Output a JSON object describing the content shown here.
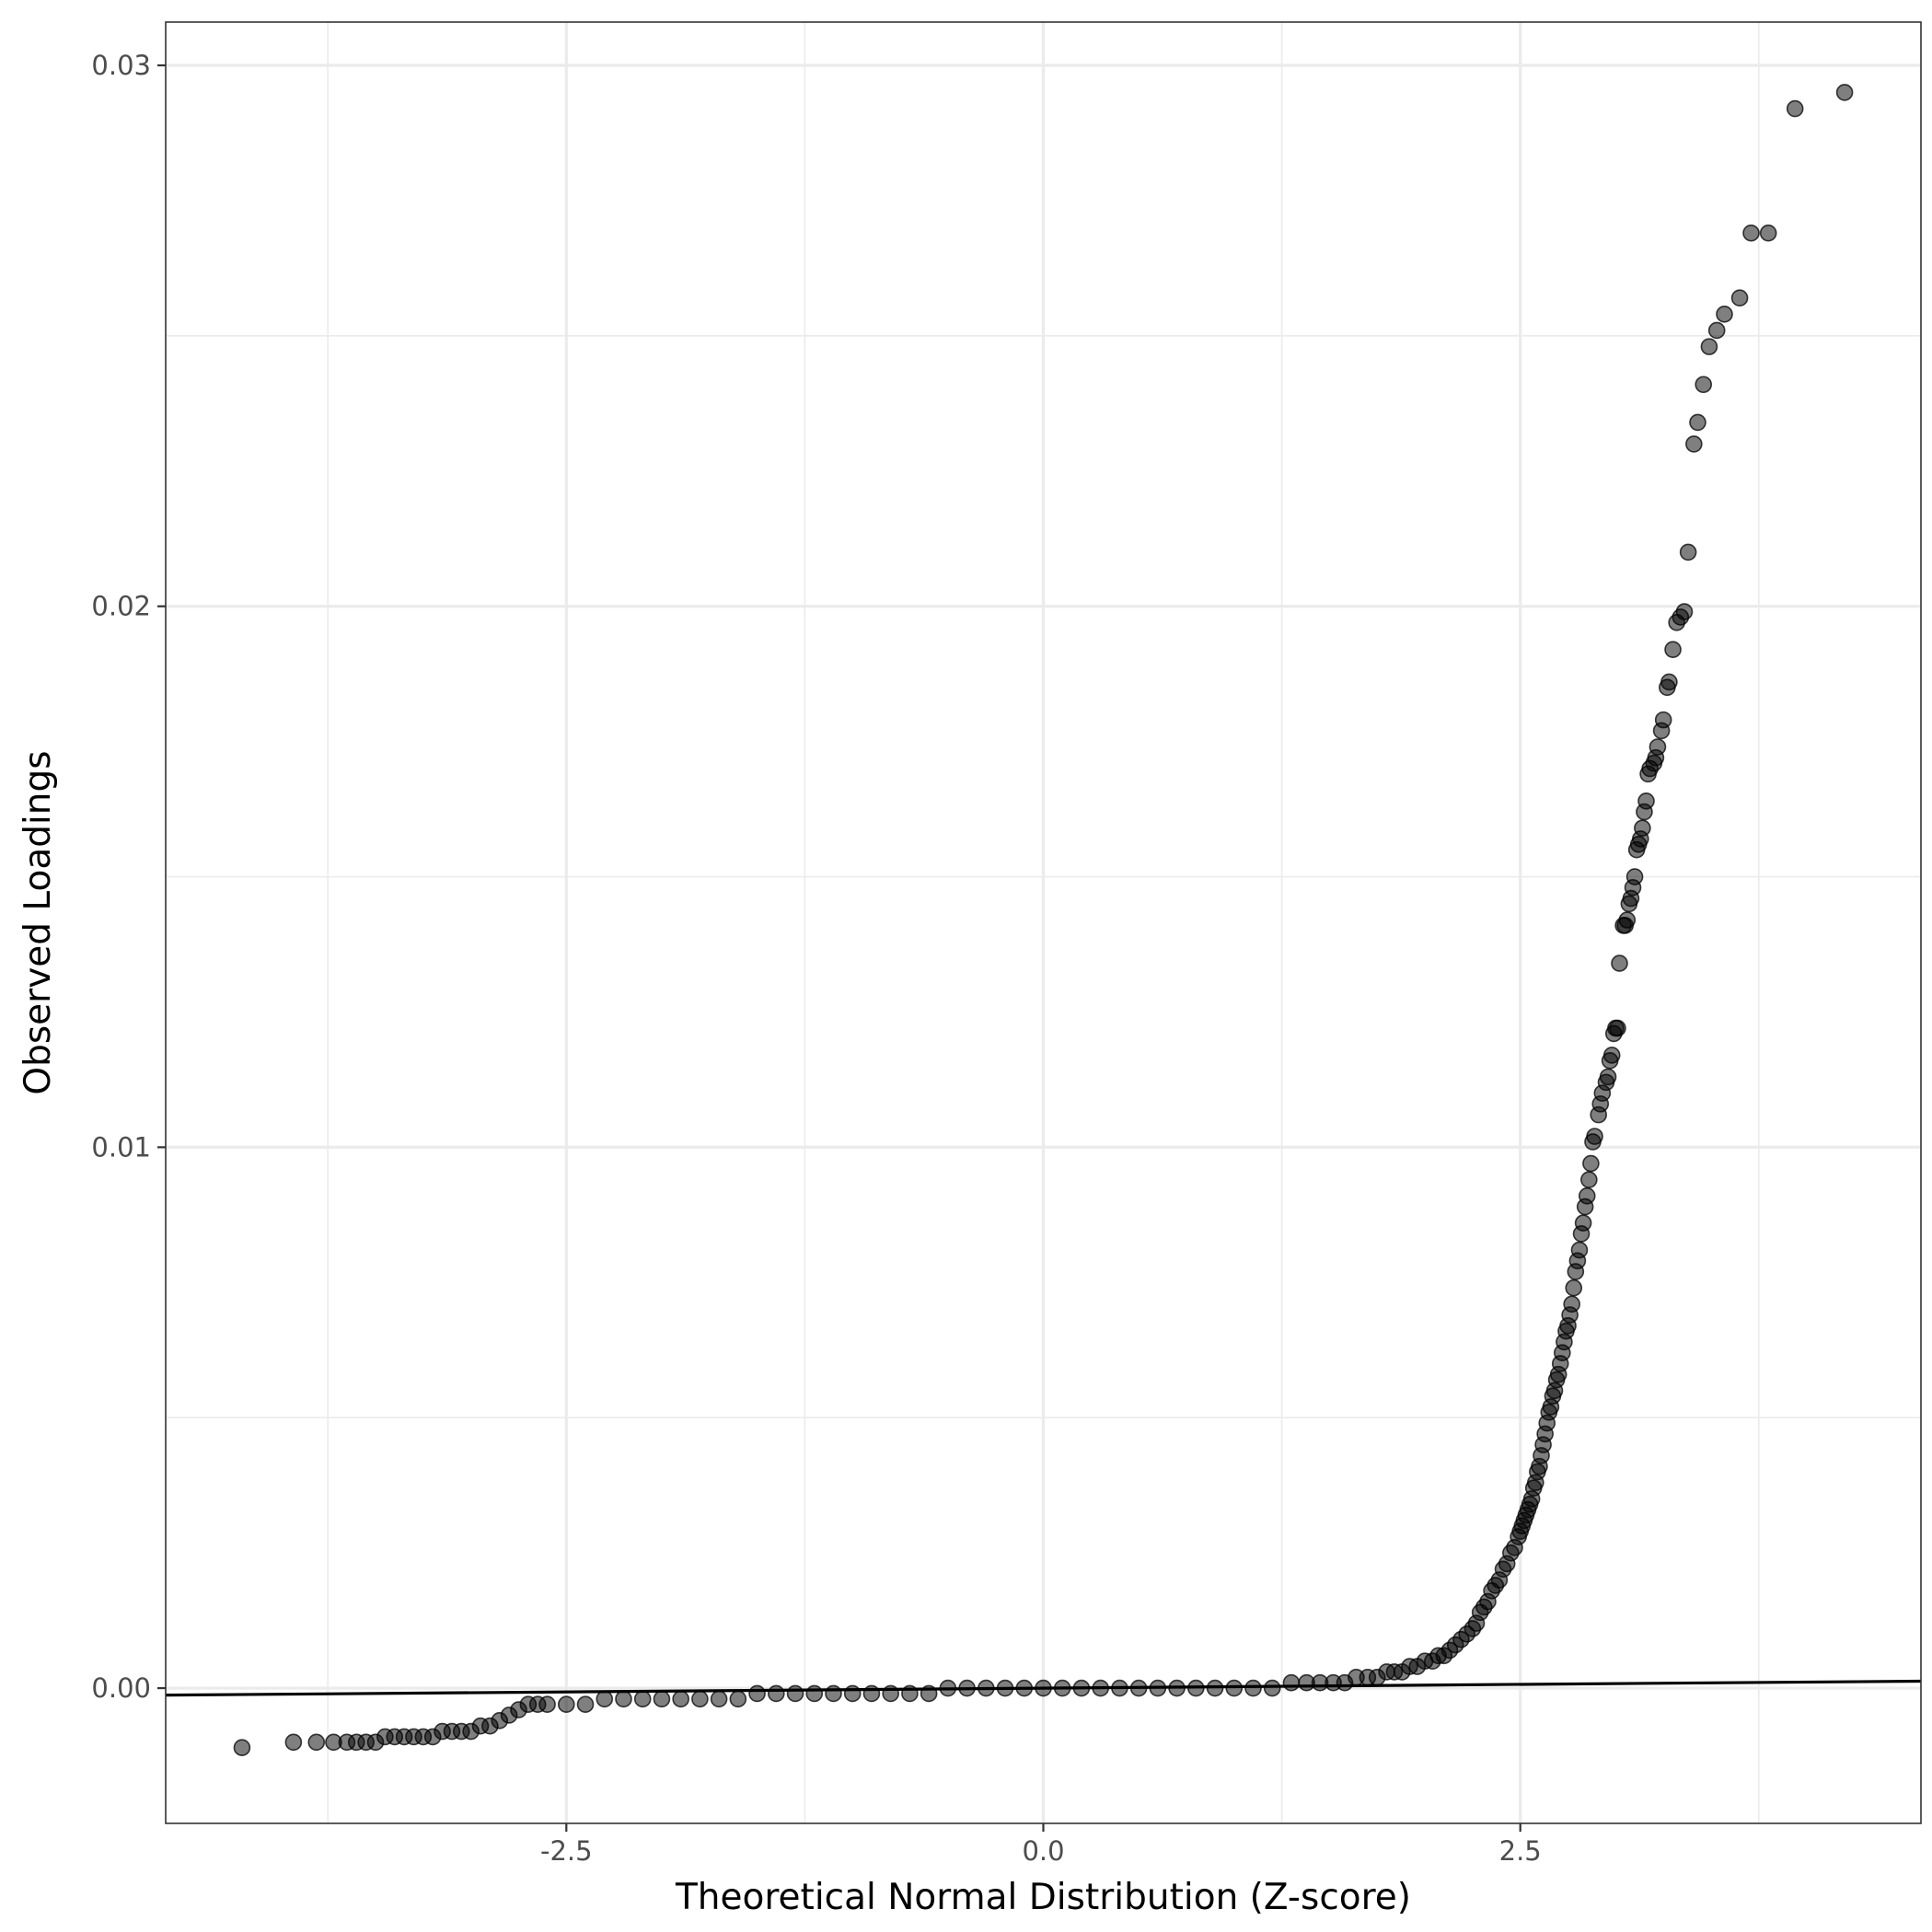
{
  "chart_data": {
    "type": "scatter",
    "title": "",
    "xlabel": "Theoretical Normal Distribution (Z-score)",
    "ylabel": "Observed Loadings",
    "xlim": [
      -4.6,
      4.6
    ],
    "ylim": [
      -0.0025,
      0.0308
    ],
    "x_ticks": [
      -2.5,
      0.0,
      2.5
    ],
    "x_tick_labels": [
      "-2.5",
      "0.0",
      "2.5"
    ],
    "y_ticks": [
      0.0,
      0.01,
      0.02,
      0.03
    ],
    "y_tick_labels": [
      "0.00",
      "0.01",
      "0.02",
      "0.03"
    ],
    "x_minor_ticks": [
      -3.75,
      -1.25,
      1.25,
      3.75
    ],
    "y_minor_ticks": [
      0.005,
      0.015,
      0.025
    ],
    "grid": true,
    "point_color": "#000000",
    "point_opacity": 0.5,
    "line_color": "#000000",
    "reference_line": {
      "intercept": 0.0,
      "slope": 2.8e-05
    },
    "points": [
      [
        4.2,
        0.0295
      ],
      [
        3.94,
        0.0292
      ],
      [
        3.8,
        0.0269
      ],
      [
        3.71,
        0.0269
      ],
      [
        3.65,
        0.0257
      ],
      [
        3.57,
        0.0254
      ],
      [
        3.53,
        0.0251
      ],
      [
        3.49,
        0.0248
      ],
      [
        3.46,
        0.0241
      ],
      [
        3.43,
        0.0234
      ],
      [
        3.41,
        0.023
      ],
      [
        3.38,
        0.021
      ],
      [
        3.36,
        0.0199
      ],
      [
        3.34,
        0.0198
      ],
      [
        3.32,
        0.0197
      ],
      [
        3.3,
        0.0192
      ],
      [
        3.28,
        0.0186
      ],
      [
        3.27,
        0.0185
      ],
      [
        3.25,
        0.0179
      ],
      [
        3.24,
        0.0177
      ],
      [
        3.22,
        0.0174
      ],
      [
        3.21,
        0.0172
      ],
      [
        3.2,
        0.0171
      ],
      [
        3.18,
        0.017
      ],
      [
        3.17,
        0.0169
      ],
      [
        3.16,
        0.0164
      ],
      [
        3.15,
        0.0162
      ],
      [
        3.14,
        0.0159
      ],
      [
        3.13,
        0.0157
      ],
      [
        3.12,
        0.0156
      ],
      [
        3.11,
        0.0155
      ],
      [
        3.1,
        0.015
      ],
      [
        3.09,
        0.0148
      ],
      [
        3.08,
        0.0146
      ],
      [
        3.07,
        0.0145
      ],
      [
        3.06,
        0.0142
      ],
      [
        3.05,
        0.0141
      ],
      [
        3.04,
        0.0141
      ],
      [
        3.02,
        0.0134
      ],
      [
        3.01,
        0.0122
      ],
      [
        3.0,
        0.0122
      ],
      [
        2.99,
        0.0121
      ],
      [
        2.98,
        0.0117
      ],
      [
        2.97,
        0.0116
      ],
      [
        2.96,
        0.0113
      ],
      [
        2.95,
        0.0112
      ],
      [
        2.93,
        0.011
      ],
      [
        2.92,
        0.0108
      ],
      [
        2.91,
        0.0106
      ],
      [
        2.89,
        0.0102
      ],
      [
        2.88,
        0.0101
      ],
      [
        2.87,
        0.0097
      ],
      [
        2.86,
        0.0094
      ],
      [
        2.85,
        0.0091
      ],
      [
        2.84,
        0.0089
      ],
      [
        2.83,
        0.0086
      ],
      [
        2.82,
        0.0084
      ],
      [
        2.81,
        0.0081
      ],
      [
        2.8,
        0.0079
      ],
      [
        2.79,
        0.0077
      ],
      [
        2.78,
        0.0074
      ],
      [
        2.77,
        0.0071
      ],
      [
        2.76,
        0.0069
      ],
      [
        2.75,
        0.0067
      ],
      [
        2.74,
        0.0066
      ],
      [
        2.73,
        0.0064
      ],
      [
        2.72,
        0.0062
      ],
      [
        2.71,
        0.006
      ],
      [
        2.7,
        0.0058
      ],
      [
        2.69,
        0.0057
      ],
      [
        2.68,
        0.0055
      ],
      [
        2.67,
        0.0054
      ],
      [
        2.66,
        0.0052
      ],
      [
        2.65,
        0.0051
      ],
      [
        2.64,
        0.0049
      ],
      [
        2.63,
        0.0047
      ],
      [
        2.62,
        0.0045
      ],
      [
        2.61,
        0.0043
      ],
      [
        2.6,
        0.0041
      ],
      [
        2.59,
        0.004
      ],
      [
        2.58,
        0.0038
      ],
      [
        2.57,
        0.0037
      ],
      [
        2.56,
        0.0035
      ],
      [
        2.55,
        0.0034
      ],
      [
        2.54,
        0.0033
      ],
      [
        2.53,
        0.0032
      ],
      [
        2.52,
        0.0031
      ],
      [
        2.51,
        0.003
      ],
      [
        2.5,
        0.0029
      ],
      [
        2.49,
        0.0028
      ],
      [
        2.47,
        0.0026
      ],
      [
        2.45,
        0.0025
      ],
      [
        2.43,
        0.0023
      ],
      [
        2.41,
        0.0022
      ],
      [
        2.39,
        0.002
      ],
      [
        2.37,
        0.0019
      ],
      [
        2.35,
        0.0018
      ],
      [
        2.33,
        0.0016
      ],
      [
        2.31,
        0.0015
      ],
      [
        2.29,
        0.0014
      ],
      [
        2.27,
        0.0012
      ],
      [
        2.25,
        0.0011
      ],
      [
        2.22,
        0.001
      ],
      [
        2.19,
        0.0009
      ],
      [
        2.16,
        0.0008
      ],
      [
        2.13,
        0.0007
      ],
      [
        2.1,
        0.0006
      ],
      [
        2.07,
        0.0006
      ],
      [
        2.04,
        0.0005
      ],
      [
        2.0,
        0.0005
      ],
      [
        1.96,
        0.0004
      ],
      [
        1.92,
        0.0004
      ],
      [
        1.88,
        0.0003
      ],
      [
        1.84,
        0.0003
      ],
      [
        1.8,
        0.0003
      ],
      [
        1.75,
        0.0002
      ],
      [
        1.7,
        0.0002
      ],
      [
        1.64,
        0.0002
      ],
      [
        1.58,
        0.0001
      ],
      [
        1.52,
        0.0001
      ],
      [
        1.45,
        0.0001
      ],
      [
        1.38,
        0.0001
      ],
      [
        1.3,
        0.0001
      ],
      [
        1.2,
        0.0
      ],
      [
        1.1,
        0.0
      ],
      [
        1.0,
        0.0
      ],
      [
        0.9,
        0.0
      ],
      [
        0.8,
        0.0
      ],
      [
        0.7,
        0.0
      ],
      [
        0.6,
        0.0
      ],
      [
        0.5,
        0.0
      ],
      [
        0.4,
        0.0
      ],
      [
        0.3,
        0.0
      ],
      [
        0.2,
        0.0
      ],
      [
        0.1,
        0.0
      ],
      [
        0.0,
        0.0
      ],
      [
        -0.1,
        0.0
      ],
      [
        -0.2,
        0.0
      ],
      [
        -0.3,
        0.0
      ],
      [
        -0.4,
        0.0
      ],
      [
        -0.5,
        0.0
      ],
      [
        -0.6,
        -0.0001
      ],
      [
        -0.7,
        -0.0001
      ],
      [
        -0.8,
        -0.0001
      ],
      [
        -0.9,
        -0.0001
      ],
      [
        -1.0,
        -0.0001
      ],
      [
        -1.1,
        -0.0001
      ],
      [
        -1.2,
        -0.0001
      ],
      [
        -1.3,
        -0.0001
      ],
      [
        -1.4,
        -0.0001
      ],
      [
        -1.5,
        -0.0001
      ],
      [
        -1.6,
        -0.0002
      ],
      [
        -1.7,
        -0.0002
      ],
      [
        -1.8,
        -0.0002
      ],
      [
        -1.9,
        -0.0002
      ],
      [
        -2.0,
        -0.0002
      ],
      [
        -2.1,
        -0.0002
      ],
      [
        -2.2,
        -0.0002
      ],
      [
        -2.3,
        -0.0002
      ],
      [
        -2.4,
        -0.0003
      ],
      [
        -2.5,
        -0.0003
      ],
      [
        -2.6,
        -0.0003
      ],
      [
        -2.65,
        -0.0003
      ],
      [
        -2.7,
        -0.0003
      ],
      [
        -2.75,
        -0.0004
      ],
      [
        -2.8,
        -0.0005
      ],
      [
        -2.85,
        -0.0006
      ],
      [
        -2.9,
        -0.0007
      ],
      [
        -2.95,
        -0.0007
      ],
      [
        -3.0,
        -0.0008
      ],
      [
        -3.05,
        -0.0008
      ],
      [
        -3.1,
        -0.0008
      ],
      [
        -3.15,
        -0.0008
      ],
      [
        -3.2,
        -0.0009
      ],
      [
        -3.25,
        -0.0009
      ],
      [
        -3.3,
        -0.0009
      ],
      [
        -3.35,
        -0.0009
      ],
      [
        -3.4,
        -0.0009
      ],
      [
        -3.45,
        -0.0009
      ],
      [
        -3.5,
        -0.001
      ],
      [
        -3.55,
        -0.001
      ],
      [
        -3.6,
        -0.001
      ],
      [
        -3.65,
        -0.001
      ],
      [
        -3.72,
        -0.001
      ],
      [
        -3.81,
        -0.001
      ],
      [
        -3.93,
        -0.001
      ],
      [
        -4.2,
        -0.0011
      ]
    ]
  }
}
